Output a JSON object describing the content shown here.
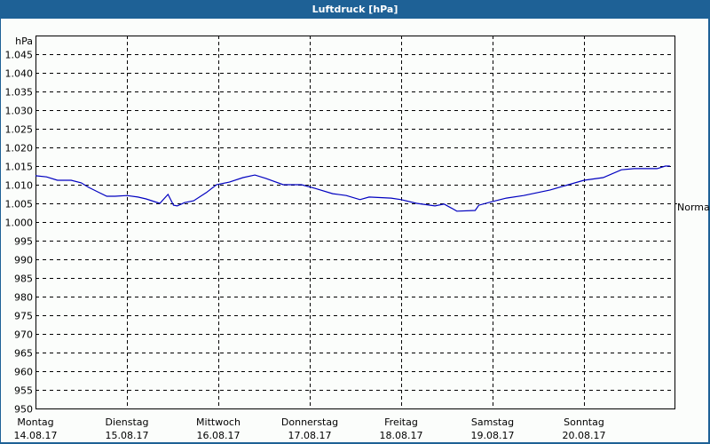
{
  "window": {
    "title": "Luftdruck [hPa]"
  },
  "chart_data": {
    "type": "line",
    "title": "Luftdruck [hPa]",
    "xlabel": "",
    "ylabel": "hPa",
    "ylim": [
      950,
      1050
    ],
    "grid": true,
    "y_ticks": [
      {
        "value": 1045,
        "label": "1.045"
      },
      {
        "value": 1040,
        "label": "1.040"
      },
      {
        "value": 1035,
        "label": "1.035"
      },
      {
        "value": 1030,
        "label": "1.030"
      },
      {
        "value": 1025,
        "label": "1.025"
      },
      {
        "value": 1020,
        "label": "1.020"
      },
      {
        "value": 1015,
        "label": "1.015"
      },
      {
        "value": 1010,
        "label": "1.010"
      },
      {
        "value": 1005,
        "label": "1.005"
      },
      {
        "value": 1000,
        "label": "1.000"
      },
      {
        "value": 995,
        "label": "995"
      },
      {
        "value": 990,
        "label": "990"
      },
      {
        "value": 985,
        "label": "985"
      },
      {
        "value": 980,
        "label": "980"
      },
      {
        "value": 975,
        "label": "975"
      },
      {
        "value": 970,
        "label": "970"
      },
      {
        "value": 965,
        "label": "965"
      },
      {
        "value": 960,
        "label": "960"
      },
      {
        "value": 955,
        "label": "955"
      },
      {
        "value": 950,
        "label": "950"
      }
    ],
    "categories": [
      {
        "day": "Montag",
        "date": "14.08.17"
      },
      {
        "day": "Dienstag",
        "date": "15.08.17"
      },
      {
        "day": "Mittwoch",
        "date": "16.08.17"
      },
      {
        "day": "Donnerstag",
        "date": "17.08.17"
      },
      {
        "day": "Freitag",
        "date": "18.08.17"
      },
      {
        "day": "Samstag",
        "date": "19.08.17"
      },
      {
        "day": "Sonntag",
        "date": "20.08.17"
      }
    ],
    "reference_line": {
      "label": "Normal",
      "value": 1005
    },
    "series": [
      {
        "name": "Luftdruck",
        "color": "#0000c0",
        "x_days": [
          0.0,
          0.12,
          0.24,
          0.39,
          0.5,
          0.58,
          0.68,
          0.78,
          0.87,
          1.0,
          1.12,
          1.21,
          1.36,
          1.45,
          1.51,
          1.55,
          1.63,
          1.73,
          1.87,
          1.98,
          2.12,
          2.27,
          2.4,
          2.52,
          2.71,
          2.91,
          3.06,
          3.25,
          3.4,
          3.55,
          3.65,
          3.89,
          4.0,
          4.17,
          4.37,
          4.47,
          4.56,
          4.61,
          4.81,
          4.85,
          5.0,
          5.15,
          5.34,
          5.63,
          5.83,
          6.0,
          6.21,
          6.41,
          6.55,
          6.8,
          6.89,
          6.94
        ],
        "values": [
          1012.4,
          1012.1,
          1011.2,
          1011.2,
          1010.5,
          1009.3,
          1008.1,
          1006.9,
          1006.9,
          1007.1,
          1006.7,
          1006.2,
          1005.0,
          1007.4,
          1004.5,
          1004.3,
          1005.2,
          1005.7,
          1007.9,
          1010.0,
          1010.7,
          1011.9,
          1012.6,
          1011.7,
          1010.0,
          1010.0,
          1009.0,
          1007.6,
          1007.1,
          1006.0,
          1006.7,
          1006.4,
          1006.0,
          1005.0,
          1004.3,
          1004.8,
          1003.6,
          1002.9,
          1003.1,
          1004.5,
          1005.5,
          1006.4,
          1007.1,
          1008.6,
          1010.0,
          1011.2,
          1011.9,
          1014.0,
          1014.3,
          1014.3,
          1015.0,
          1015.0
        ]
      }
    ]
  }
}
